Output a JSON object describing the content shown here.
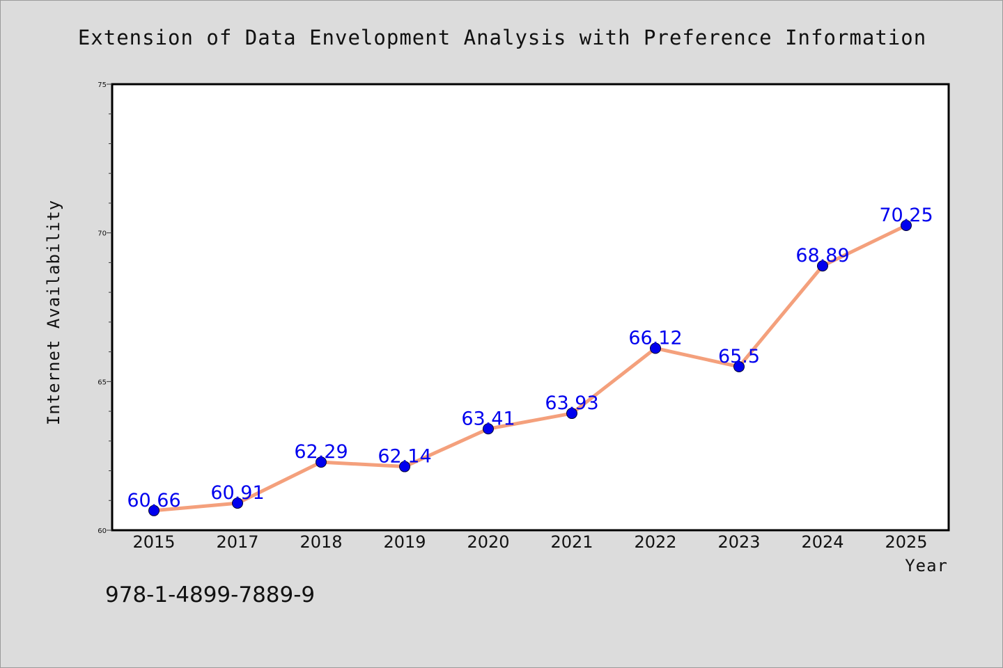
{
  "chart_data": {
    "type": "line",
    "title": "Extension of Data Envelopment Analysis with Preference Information",
    "xlabel": "Year",
    "ylabel": "Internet Availability",
    "categories": [
      "2015",
      "2017",
      "2018",
      "2019",
      "2020",
      "2021",
      "2022",
      "2023",
      "2024",
      "2025"
    ],
    "series": [
      {
        "values": [
          60.66,
          60.91,
          62.29,
          62.14,
          63.41,
          63.93,
          66.12,
          65.5,
          68.89,
          70.25
        ]
      }
    ],
    "data_labels": [
      "60.66",
      "60.91",
      "62.29",
      "62.14",
      "63.41",
      "63.93",
      "66.12",
      "65.5",
      "68.89",
      "70.25"
    ],
    "ylim": [
      60,
      75
    ],
    "yticks": [
      "60",
      "65",
      "70",
      "75"
    ],
    "grid": false,
    "legend": "none",
    "colors": {
      "line": "#f4a07c",
      "marker": "#0000ee",
      "label": "#0000ee",
      "background": "#dcdcdc",
      "plot_area": "#ffffff"
    }
  },
  "footer": {
    "isbn": "978-1-4899-7889-9"
  }
}
